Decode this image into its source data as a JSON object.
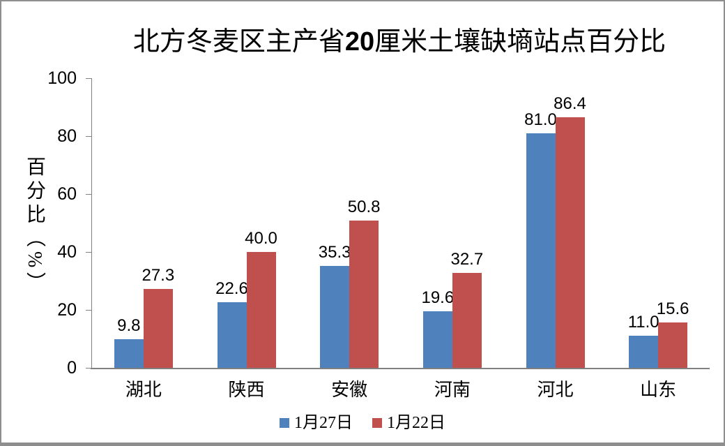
{
  "chart_data": {
    "type": "bar",
    "title": {
      "prefix": "北方冬麦区主产省",
      "bold": "20",
      "suffix": "厘米土壤缺墒站点百分比",
      "full": "北方冬麦区主产省20厘米土壤缺墒站点百分比"
    },
    "ylabel": "百分比（%）",
    "xlabel": "",
    "categories": [
      "湖北",
      "陕西",
      "安徽",
      "河南",
      "河北",
      "山东"
    ],
    "series": [
      {
        "name": "1月27日",
        "color": "#4F81BD",
        "values": [
          9.8,
          22.6,
          35.3,
          19.6,
          81.0,
          11.0
        ]
      },
      {
        "name": "1月22日",
        "color": "#C0504D",
        "values": [
          27.3,
          40.0,
          50.8,
          32.7,
          86.4,
          15.6
        ]
      }
    ],
    "ylim": [
      0,
      100
    ],
    "yticks": [
      0,
      20,
      40,
      60,
      80,
      100
    ],
    "grid": false,
    "legend_position": "bottom",
    "data_labels": true,
    "data_label_decimals": 1
  },
  "colors": {
    "axis": "#808080",
    "frame": "#8e8e8e",
    "background": "#ffffff",
    "text": "#000000"
  }
}
